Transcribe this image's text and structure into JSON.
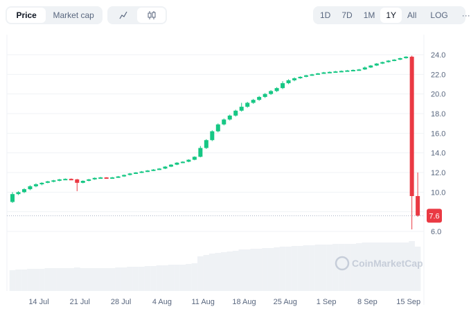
{
  "toolbar": {
    "type_tabs": [
      {
        "label": "Price",
        "active": true
      },
      {
        "label": "Market cap",
        "active": false
      }
    ],
    "chart_style": [
      {
        "icon": "line-chart-icon",
        "active": false
      },
      {
        "icon": "candlestick-icon",
        "active": true
      }
    ],
    "ranges": [
      {
        "label": "1D"
      },
      {
        "label": "7D"
      },
      {
        "label": "1M"
      },
      {
        "label": "1Y",
        "active": true
      },
      {
        "label": "All"
      }
    ],
    "log_label": "LOG",
    "more_label": "···"
  },
  "watermark": "CoinMarketCap",
  "colors": {
    "up": "#16c784",
    "down": "#ea3943",
    "grid": "#eff2f5",
    "volume": "#eff2f5"
  },
  "chart_data": {
    "type": "candlestick",
    "ylim": [
      6,
      24
    ],
    "y_ticks": [
      "24.0",
      "22.0",
      "20.0",
      "18.0",
      "16.0",
      "14.0",
      "12.0",
      "10.0",
      "6.0"
    ],
    "x_ticks": [
      "14 Jul",
      "21 Jul",
      "28 Jul",
      "4 Aug",
      "11 Aug",
      "18 Aug",
      "25 Aug",
      "1 Sep",
      "8 Sep",
      "15 Sep"
    ],
    "current_price": "7.6",
    "grid": true,
    "candles": [
      [
        "Jul 10",
        9.0,
        10.0,
        8.9,
        9.8
      ],
      [
        "Jul 11",
        9.8,
        10.1,
        9.7,
        10.0
      ],
      [
        "Jul 12",
        10.0,
        10.4,
        9.9,
        10.3
      ],
      [
        "Jul 13",
        10.3,
        10.7,
        10.2,
        10.6
      ],
      [
        "Jul 14",
        10.6,
        10.9,
        10.5,
        10.8
      ],
      [
        "Jul 15",
        10.8,
        11.0,
        10.7,
        10.95
      ],
      [
        "Jul 16",
        10.95,
        11.15,
        10.9,
        11.1
      ],
      [
        "Jul 17",
        11.1,
        11.25,
        11.0,
        11.2
      ],
      [
        "Jul 18",
        11.2,
        11.35,
        11.1,
        11.3
      ],
      [
        "Jul 19",
        11.3,
        11.4,
        11.25,
        11.35
      ],
      [
        "Jul 20",
        11.35,
        11.4,
        11.25,
        11.3
      ],
      [
        "Jul 21",
        11.3,
        11.35,
        10.1,
        10.95
      ],
      [
        "Jul 22",
        10.95,
        11.2,
        10.9,
        11.15
      ],
      [
        "Jul 23",
        11.15,
        11.35,
        11.1,
        11.3
      ],
      [
        "Jul 24",
        11.3,
        11.5,
        11.25,
        11.45
      ],
      [
        "Jul 25",
        11.45,
        11.55,
        11.4,
        11.5
      ],
      [
        "Jul 26",
        11.5,
        11.52,
        11.42,
        11.45
      ],
      [
        "Jul 27",
        11.45,
        11.55,
        11.4,
        11.5
      ],
      [
        "Jul 28",
        11.5,
        11.65,
        11.45,
        11.6
      ],
      [
        "Jul 29",
        11.6,
        11.8,
        11.55,
        11.75
      ],
      [
        "Jul 30",
        11.75,
        11.95,
        11.7,
        11.9
      ],
      [
        "Jul 31",
        11.9,
        12.05,
        11.85,
        12.0
      ],
      [
        "Aug 1",
        12.0,
        12.15,
        11.95,
        12.1
      ],
      [
        "Aug 2",
        12.1,
        12.25,
        12.05,
        12.2
      ],
      [
        "Aug 3",
        12.2,
        12.35,
        12.15,
        12.3
      ],
      [
        "Aug 4",
        12.3,
        12.45,
        12.25,
        12.4
      ],
      [
        "Aug 5",
        12.4,
        12.65,
        12.35,
        12.6
      ],
      [
        "Aug 6",
        12.6,
        12.85,
        12.55,
        12.8
      ],
      [
        "Aug 7",
        12.8,
        13.05,
        12.75,
        13.0
      ],
      [
        "Aug 8",
        13.0,
        13.15,
        12.95,
        13.1
      ],
      [
        "Aug 9",
        13.1,
        13.35,
        13.05,
        13.3
      ],
      [
        "Aug 10",
        13.3,
        13.65,
        13.25,
        13.6
      ],
      [
        "Aug 11",
        13.6,
        14.7,
        13.55,
        14.5
      ],
      [
        "Aug 12",
        14.5,
        15.4,
        14.4,
        15.3
      ],
      [
        "Aug 13",
        15.3,
        16.3,
        15.2,
        16.2
      ],
      [
        "Aug 14",
        16.2,
        17.0,
        16.1,
        16.9
      ],
      [
        "Aug 15",
        16.9,
        17.5,
        16.8,
        17.4
      ],
      [
        "Aug 16",
        17.4,
        17.9,
        17.3,
        17.8
      ],
      [
        "Aug 17",
        17.8,
        18.4,
        17.7,
        18.3
      ],
      [
        "Aug 18",
        18.3,
        19.1,
        18.2,
        18.7
      ],
      [
        "Aug 19",
        18.7,
        19.2,
        18.6,
        19.1
      ],
      [
        "Aug 20",
        19.1,
        19.5,
        19.0,
        19.4
      ],
      [
        "Aug 21",
        19.4,
        19.8,
        19.3,
        19.7
      ],
      [
        "Aug 22",
        19.7,
        20.1,
        19.6,
        20.0
      ],
      [
        "Aug 23",
        20.0,
        20.4,
        19.9,
        20.3
      ],
      [
        "Aug 24",
        20.3,
        20.7,
        20.2,
        20.6
      ],
      [
        "Aug 25",
        20.6,
        21.3,
        20.5,
        21.1
      ],
      [
        "Aug 26",
        21.1,
        21.5,
        21.0,
        21.4
      ],
      [
        "Aug 27",
        21.4,
        21.7,
        21.3,
        21.6
      ],
      [
        "Aug 28",
        21.6,
        21.8,
        21.55,
        21.75
      ],
      [
        "Aug 29",
        21.75,
        21.95,
        21.7,
        21.9
      ],
      [
        "Aug 30",
        21.9,
        22.05,
        21.85,
        22.0
      ],
      [
        "Aug 31",
        22.0,
        22.15,
        21.95,
        22.1
      ],
      [
        "Sep 1",
        22.1,
        22.25,
        22.05,
        22.2
      ],
      [
        "Sep 2",
        22.2,
        22.3,
        22.15,
        22.25
      ],
      [
        "Sep 3",
        22.25,
        22.35,
        22.2,
        22.3
      ],
      [
        "Sep 4",
        22.3,
        22.4,
        22.25,
        22.35
      ],
      [
        "Sep 5",
        22.35,
        22.45,
        22.3,
        22.4
      ],
      [
        "Sep 6",
        22.4,
        22.5,
        22.35,
        22.45
      ],
      [
        "Sep 7",
        22.45,
        22.55,
        22.4,
        22.5
      ],
      [
        "Sep 8",
        22.5,
        22.8,
        22.45,
        22.7
      ],
      [
        "Sep 9",
        22.7,
        22.95,
        22.65,
        22.9
      ],
      [
        "Sep 10",
        22.9,
        23.15,
        22.85,
        23.1
      ],
      [
        "Sep 11",
        23.1,
        23.3,
        23.05,
        23.25
      ],
      [
        "Sep 12",
        23.25,
        23.45,
        23.2,
        23.4
      ],
      [
        "Sep 13",
        23.4,
        23.55,
        23.35,
        23.5
      ],
      [
        "Sep 14",
        23.5,
        23.7,
        23.45,
        23.65
      ],
      [
        "Sep 15",
        23.65,
        23.85,
        23.6,
        23.8
      ],
      [
        "Sep 16",
        23.8,
        23.9,
        6.2,
        9.6
      ],
      [
        "Sep 17",
        9.6,
        12.0,
        7.5,
        7.6
      ]
    ],
    "volume_relative": [
      30,
      31,
      31,
      32,
      32,
      32,
      33,
      33,
      33,
      33,
      33,
      34,
      33,
      33,
      33,
      33,
      33,
      33,
      34,
      34,
      35,
      35,
      35,
      36,
      36,
      37,
      37,
      38,
      38,
      38,
      39,
      40,
      50,
      52,
      54,
      55,
      56,
      57,
      58,
      60,
      60,
      61,
      61,
      62,
      62,
      63,
      64,
      64,
      65,
      65,
      66,
      66,
      67,
      67,
      67,
      68,
      68,
      68,
      68,
      69,
      70,
      70,
      70,
      70,
      70,
      70,
      70,
      70,
      72,
      64
    ]
  }
}
